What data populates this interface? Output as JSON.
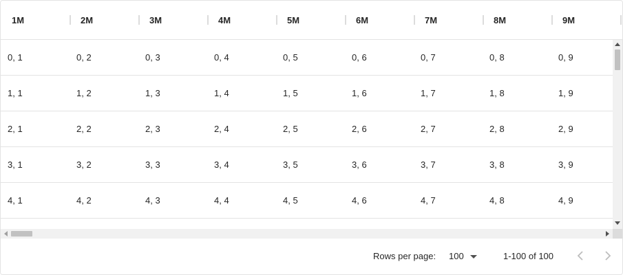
{
  "columns": [
    "1M",
    "2M",
    "3M",
    "4M",
    "5M",
    "6M",
    "7M",
    "8M",
    "9M"
  ],
  "rows": [
    [
      "0, 1",
      "0, 2",
      "0, 3",
      "0, 4",
      "0, 5",
      "0, 6",
      "0, 7",
      "0, 8",
      "0, 9"
    ],
    [
      "1, 1",
      "1, 2",
      "1, 3",
      "1, 4",
      "1, 5",
      "1, 6",
      "1, 7",
      "1, 8",
      "1, 9"
    ],
    [
      "2, 1",
      "2, 2",
      "2, 3",
      "2, 4",
      "2, 5",
      "2, 6",
      "2, 7",
      "2, 8",
      "2, 9"
    ],
    [
      "3, 1",
      "3, 2",
      "3, 3",
      "3, 4",
      "3, 5",
      "3, 6",
      "3, 7",
      "3, 8",
      "3, 9"
    ],
    [
      "4, 1",
      "4, 2",
      "4, 3",
      "4, 4",
      "4, 5",
      "4, 6",
      "4, 7",
      "4, 8",
      "4, 9"
    ]
  ],
  "footer": {
    "rows_per_page_label": "Rows per page:",
    "rows_per_page_value": "100",
    "range_text": "1-100 of 100",
    "prev_icon": "chevron-left-icon",
    "next_icon": "chevron-right-icon"
  },
  "colors": {
    "border": "#e3e3e3",
    "text": "#262626",
    "disabled_icon": "#bdbdbd",
    "enabled_icon": "#757575"
  }
}
